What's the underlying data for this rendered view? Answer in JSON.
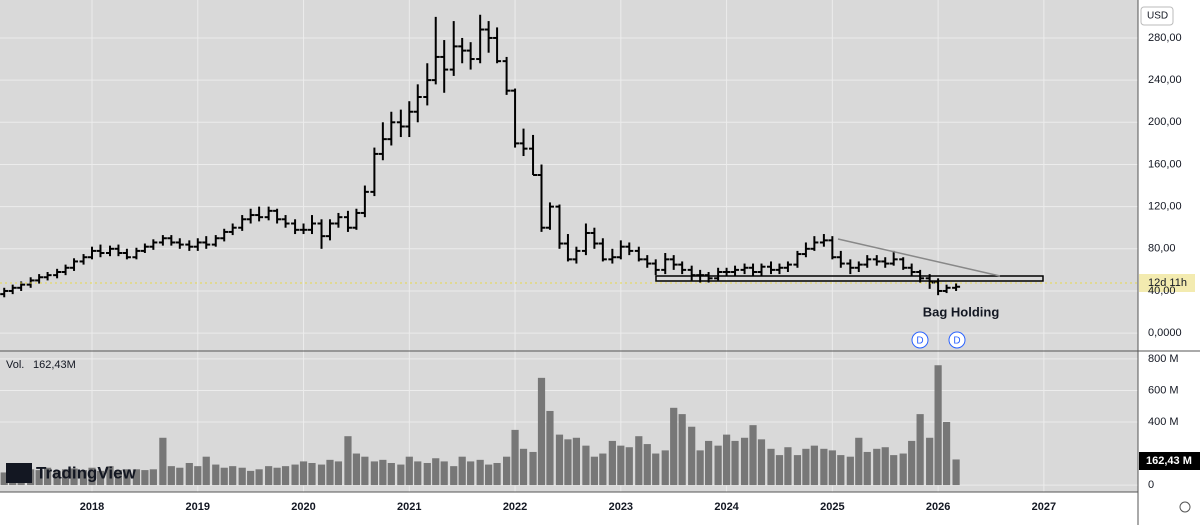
{
  "chart_data": [
    {
      "type": "ohlc",
      "annotation": "Bag Holding",
      "markers": [
        "D",
        "D"
      ],
      "x": [
        2017.17,
        2017.25,
        2017.33,
        2017.42,
        2017.5,
        2017.58,
        2017.67,
        2017.75,
        2017.83,
        2017.92,
        2018.0,
        2018.08,
        2018.17,
        2018.25,
        2018.33,
        2018.42,
        2018.5,
        2018.58,
        2018.67,
        2018.75,
        2018.83,
        2018.92,
        2019.0,
        2019.08,
        2019.17,
        2019.25,
        2019.33,
        2019.42,
        2019.5,
        2019.58,
        2019.67,
        2019.75,
        2019.83,
        2019.92,
        2020.0,
        2020.08,
        2020.17,
        2020.25,
        2020.33,
        2020.42,
        2020.5,
        2020.58,
        2020.67,
        2020.75,
        2020.83,
        2020.92,
        2021.0,
        2021.08,
        2021.17,
        2021.25,
        2021.33,
        2021.42,
        2021.5,
        2021.58,
        2021.67,
        2021.75,
        2021.83,
        2021.92,
        2022.0,
        2022.08,
        2022.17,
        2022.25,
        2022.33,
        2022.42,
        2022.5,
        2022.58,
        2022.67,
        2022.75,
        2022.83,
        2022.92,
        2023.0,
        2023.08,
        2023.17,
        2023.25,
        2023.33,
        2023.42,
        2023.5,
        2023.58,
        2023.67,
        2023.75,
        2023.83,
        2023.92,
        2024.0,
        2024.08,
        2024.17,
        2024.25,
        2024.33,
        2024.42,
        2024.5,
        2024.58,
        2024.67,
        2024.75,
        2024.83,
        2024.92,
        2025.0,
        2025.08,
        2025.17,
        2025.25,
        2025.33,
        2025.42,
        2025.5,
        2025.58,
        2025.67,
        2025.75,
        2025.83,
        2025.92,
        2026.0,
        2026.08,
        2026.17
      ],
      "open": [
        37,
        40,
        43,
        46,
        50,
        53,
        55,
        58,
        62,
        68,
        72,
        78,
        76,
        80,
        76,
        72,
        78,
        82,
        86,
        90,
        86,
        84,
        82,
        86,
        84,
        90,
        96,
        100,
        108,
        112,
        110,
        116,
        108,
        104,
        98,
        98,
        104,
        92,
        104,
        110,
        100,
        114,
        134,
        170,
        184,
        200,
        196,
        210,
        224,
        240,
        262,
        250,
        272,
        268,
        260,
        288,
        280,
        258,
        230,
        180,
        175,
        150,
        100,
        120,
        85,
        70,
        78,
        95,
        85,
        70,
        72,
        82,
        78,
        70,
        66,
        60,
        70,
        65,
        60,
        55,
        55,
        52,
        58,
        58,
        60,
        62,
        58,
        63,
        60,
        62,
        65,
        75,
        80,
        86,
        88,
        72,
        66,
        62,
        65,
        70,
        68,
        66,
        70,
        62,
        58,
        52,
        48,
        40,
        43
      ],
      "high": [
        43,
        46,
        49,
        53,
        56,
        58,
        61,
        65,
        71,
        75,
        82,
        84,
        83,
        84,
        80,
        81,
        85,
        89,
        93,
        93,
        90,
        88,
        90,
        92,
        93,
        99,
        104,
        112,
        118,
        120,
        120,
        118,
        112,
        108,
        104,
        112,
        108,
        108,
        114,
        116,
        118,
        140,
        176,
        200,
        210,
        212,
        220,
        236,
        256,
        300,
        278,
        296,
        280,
        276,
        302,
        296,
        290,
        262,
        232,
        194,
        188,
        160,
        124,
        122,
        94,
        82,
        104,
        100,
        90,
        80,
        88,
        86,
        82,
        74,
        70,
        76,
        74,
        68,
        64,
        60,
        58,
        62,
        62,
        64,
        66,
        66,
        66,
        68,
        66,
        68,
        78,
        86,
        92,
        94,
        92,
        78,
        70,
        68,
        74,
        74,
        72,
        78,
        72,
        66,
        60,
        56,
        52,
        46,
        48
      ],
      "low": [
        34,
        37,
        40,
        43,
        47,
        50,
        52,
        55,
        59,
        65,
        70,
        72,
        73,
        73,
        70,
        70,
        76,
        79,
        83,
        83,
        80,
        78,
        78,
        80,
        82,
        87,
        93,
        97,
        104,
        106,
        107,
        104,
        100,
        94,
        94,
        94,
        80,
        88,
        100,
        96,
        98,
        110,
        130,
        164,
        178,
        186,
        186,
        200,
        216,
        236,
        228,
        244,
        256,
        250,
        256,
        266,
        256,
        226,
        176,
        168,
        150,
        96,
        98,
        80,
        68,
        66,
        74,
        80,
        68,
        66,
        70,
        74,
        68,
        62,
        55,
        56,
        60,
        56,
        50,
        48,
        48,
        50,
        54,
        54,
        56,
        54,
        54,
        56,
        56,
        58,
        62,
        72,
        78,
        82,
        70,
        62,
        56,
        58,
        62,
        64,
        62,
        64,
        60,
        54,
        48,
        42,
        36,
        38,
        40
      ],
      "close": [
        40,
        43,
        46,
        50,
        53,
        55,
        58,
        62,
        68,
        72,
        78,
        76,
        80,
        76,
        72,
        78,
        82,
        86,
        90,
        86,
        84,
        82,
        86,
        84,
        90,
        96,
        100,
        108,
        112,
        110,
        116,
        108,
        104,
        98,
        98,
        104,
        92,
        104,
        110,
        100,
        114,
        134,
        170,
        184,
        200,
        196,
        210,
        224,
        240,
        262,
        250,
        272,
        268,
        260,
        288,
        280,
        258,
        230,
        180,
        175,
        150,
        100,
        120,
        85,
        70,
        78,
        95,
        85,
        70,
        72,
        82,
        78,
        70,
        66,
        60,
        70,
        65,
        60,
        55,
        55,
        52,
        58,
        58,
        60,
        62,
        58,
        63,
        60,
        62,
        65,
        75,
        80,
        86,
        88,
        72,
        66,
        62,
        65,
        70,
        68,
        66,
        70,
        62,
        58,
        52,
        48,
        40,
        43,
        44
      ],
      "color": "#000000",
      "currency": "USD",
      "countdown": "12d 11h",
      "ylim": [
        -16,
        316
      ],
      "yticks": [
        {
          "value": 0,
          "label": "0,0000"
        },
        {
          "value": 40,
          "label": "40,00"
        },
        {
          "value": 80,
          "label": "80,00"
        },
        {
          "value": 120,
          "label": "120,00"
        },
        {
          "value": 160,
          "label": "160,00"
        },
        {
          "value": 200,
          "label": "200,00"
        },
        {
          "value": 240,
          "label": "240,00"
        },
        {
          "value": 280,
          "label": "280,00"
        }
      ],
      "xlim": [
        2017.13,
        2027.89
      ],
      "grid": true
    },
    {
      "type": "bar",
      "title": "Vol.",
      "legend_value": "162,43M",
      "last_label": "162,43 M",
      "logo": "TradingView",
      "x": [
        2017.17,
        2017.25,
        2017.33,
        2017.42,
        2017.5,
        2017.58,
        2017.67,
        2017.75,
        2017.83,
        2017.92,
        2018.0,
        2018.08,
        2018.17,
        2018.25,
        2018.33,
        2018.42,
        2018.5,
        2018.58,
        2018.67,
        2018.75,
        2018.83,
        2018.92,
        2019.0,
        2019.08,
        2019.17,
        2019.25,
        2019.33,
        2019.42,
        2019.5,
        2019.58,
        2019.67,
        2019.75,
        2019.83,
        2019.92,
        2020.0,
        2020.08,
        2020.17,
        2020.25,
        2020.33,
        2020.42,
        2020.5,
        2020.58,
        2020.67,
        2020.75,
        2020.83,
        2020.92,
        2021.0,
        2021.08,
        2021.17,
        2021.25,
        2021.33,
        2021.42,
        2021.5,
        2021.58,
        2021.67,
        2021.75,
        2021.83,
        2021.92,
        2022.0,
        2022.08,
        2022.17,
        2022.25,
        2022.33,
        2022.42,
        2022.5,
        2022.58,
        2022.67,
        2022.75,
        2022.83,
        2022.92,
        2023.0,
        2023.08,
        2023.17,
        2023.25,
        2023.33,
        2023.42,
        2023.5,
        2023.58,
        2023.67,
        2023.75,
        2023.83,
        2023.92,
        2024.0,
        2024.08,
        2024.17,
        2024.25,
        2024.33,
        2024.42,
        2024.5,
        2024.58,
        2024.67,
        2024.75,
        2024.83,
        2024.92,
        2025.0,
        2025.08,
        2025.17,
        2025.25,
        2025.33,
        2025.42,
        2025.5,
        2025.58,
        2025.67,
        2025.75,
        2025.83,
        2025.92,
        2026.0,
        2026.08,
        2026.17
      ],
      "values": [
        80,
        90,
        85,
        100,
        95,
        110,
        90,
        100,
        105,
        95,
        110,
        90,
        120,
        95,
        100,
        100,
        95,
        100,
        300,
        120,
        110,
        140,
        120,
        180,
        130,
        110,
        120,
        110,
        90,
        100,
        120,
        110,
        120,
        130,
        150,
        140,
        130,
        160,
        150,
        310,
        200,
        180,
        150,
        160,
        140,
        130,
        180,
        150,
        140,
        170,
        150,
        120,
        180,
        150,
        160,
        130,
        140,
        180,
        350,
        230,
        210,
        680,
        470,
        320,
        290,
        300,
        250,
        180,
        200,
        280,
        250,
        240,
        310,
        260,
        200,
        220,
        490,
        450,
        370,
        220,
        280,
        250,
        320,
        280,
        300,
        380,
        290,
        230,
        190,
        240,
        190,
        230,
        250,
        230,
        220,
        190,
        180,
        300,
        210,
        230,
        240,
        190,
        200,
        280,
        450,
        300,
        760,
        400,
        162.43
      ],
      "color": "#777777",
      "ylim": [
        -44,
        844
      ],
      "yticks": [
        0,
        {
          "value": 400,
          "label": "400 M"
        },
        {
          "value": 600,
          "label": "600 M"
        },
        {
          "value": 800,
          "label": "800 M"
        }
      ],
      "xlim": [
        2017.13,
        2027.89
      ],
      "xticks": [
        2018,
        2019,
        2020,
        2021,
        2022,
        2023,
        2024,
        2025,
        2026,
        2027
      ],
      "grid": true
    }
  ]
}
